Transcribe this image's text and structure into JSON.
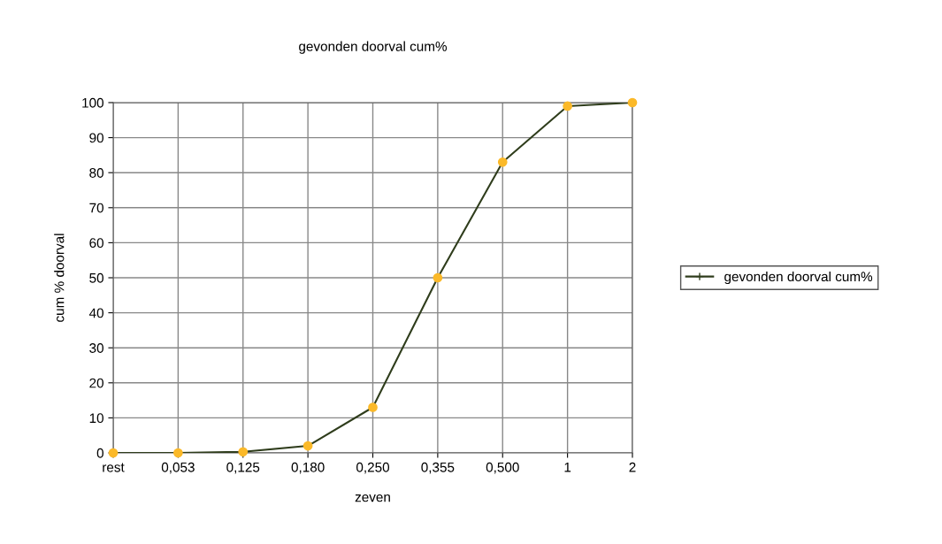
{
  "chart_data": {
    "type": "line",
    "title": "gevonden doorval cum%",
    "xlabel": "zeven",
    "ylabel": "cum % doorval",
    "categories": [
      "rest",
      "0,053",
      "0,125",
      "0,180",
      "0,250",
      "0,355",
      "0,500",
      "1",
      "2"
    ],
    "series": [
      {
        "name": "gevonden doorval cum%",
        "color": "#2f3d1c",
        "colors": [
          "#fbb929",
          "#fbb929",
          "#fbb929",
          "#fbb929",
          "#fbb929",
          "#fbb929",
          "#fbb929",
          "#fbb929",
          "#fbb929"
        ],
        "values": [
          0,
          0,
          0.3,
          2,
          13,
          50,
          83,
          99,
          100
        ]
      }
    ],
    "ylim": [
      0,
      100
    ],
    "yticks": [
      0,
      10,
      20,
      30,
      40,
      50,
      60,
      70,
      80,
      90,
      100
    ],
    "grid": true,
    "legend": "right",
    "marker": "circle",
    "line_style": "solid"
  }
}
